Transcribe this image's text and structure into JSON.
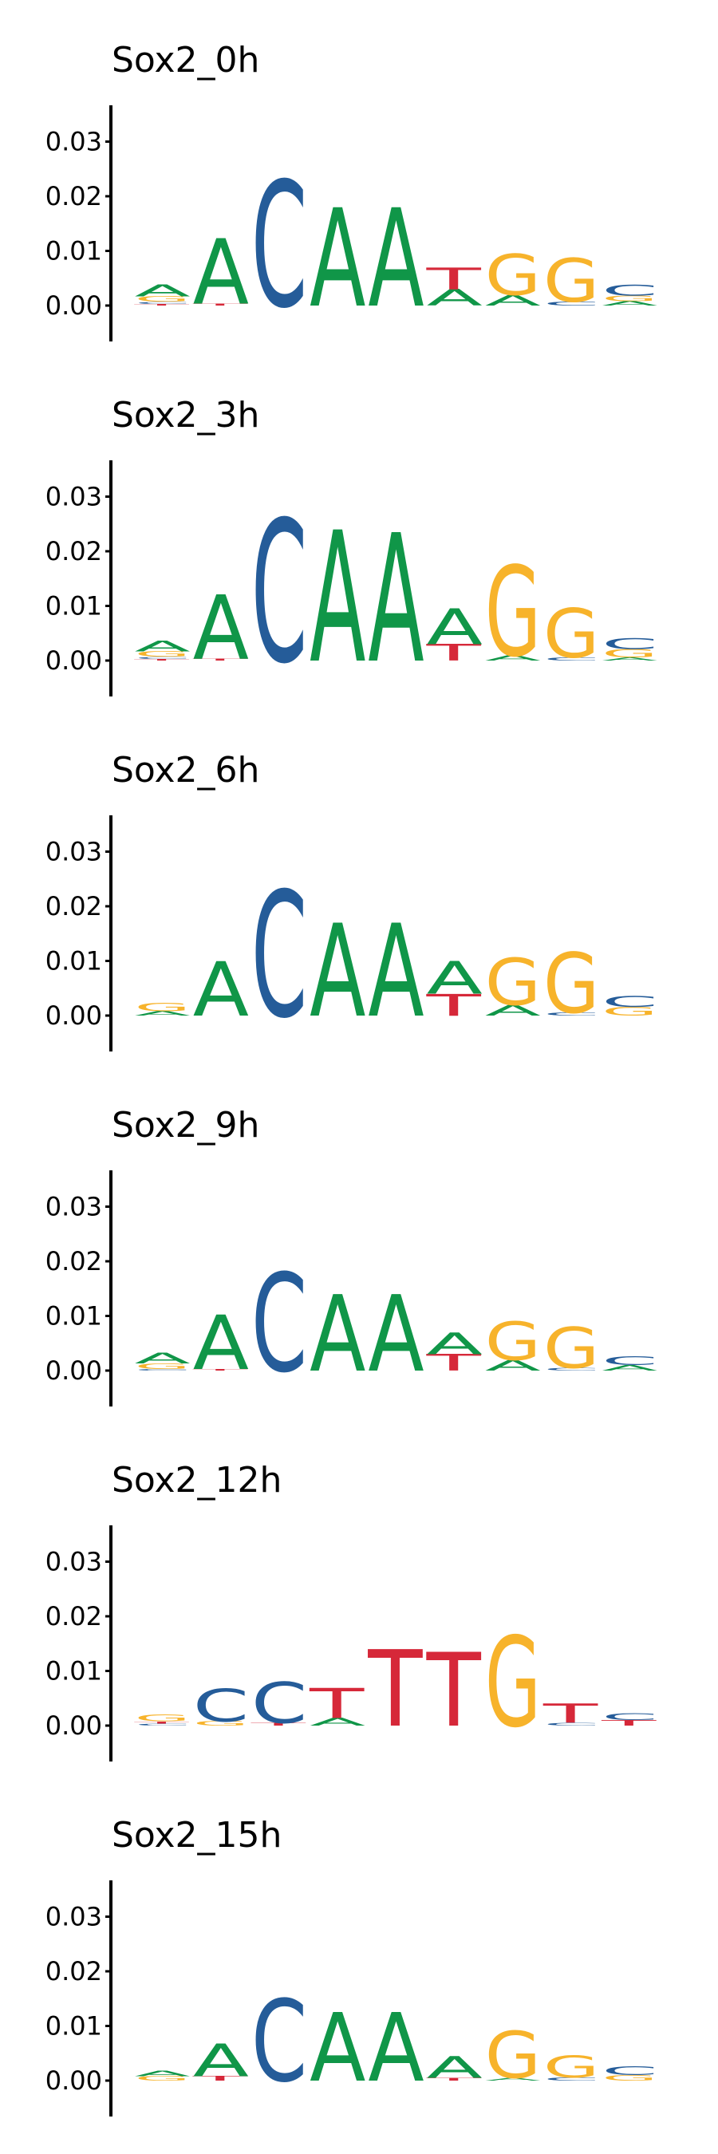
{
  "chart_data": {
    "type": "sequence-logo",
    "ylim": [
      0,
      0.037
    ],
    "yticks": [
      0.0,
      0.01,
      0.02,
      0.03
    ],
    "ytick_labels": [
      "0.00",
      "0.01",
      "0.02",
      "0.03"
    ],
    "letter_colors": {
      "A": "#109648",
      "C": "#255C99",
      "G": "#F7B32B",
      "T": "#D62839"
    },
    "panels": [
      {
        "title": "Sox2_0h",
        "positions": [
          {
            "A": 0.0022,
            "G": 0.001,
            "C": 0.0004,
            "T": 0.0003
          },
          {
            "A": 0.012,
            "T": 0.0004
          },
          {
            "C": 0.023
          },
          {
            "A": 0.018
          },
          {
            "A": 0.018
          },
          {
            "A": 0.003,
            "T": 0.004
          },
          {
            "G": 0.0075,
            "A": 0.002
          },
          {
            "G": 0.008,
            "C": 0.0007
          },
          {
            "C": 0.002,
            "G": 0.001,
            "A": 0.0008
          }
        ]
      },
      {
        "title": "Sox2_3h",
        "positions": [
          {
            "A": 0.002,
            "G": 0.001,
            "C": 0.0004,
            "T": 0.0003
          },
          {
            "A": 0.0118,
            "T": 0.0004
          },
          {
            "C": 0.026
          },
          {
            "A": 0.024
          },
          {
            "A": 0.0235
          },
          {
            "A": 0.0065,
            "T": 0.003
          },
          {
            "G": 0.0165,
            "A": 0.001
          },
          {
            "G": 0.009,
            "C": 0.0006
          },
          {
            "C": 0.002,
            "G": 0.0015,
            "A": 0.0006
          }
        ]
      },
      {
        "title": "Sox2_6h",
        "positions": [
          {
            "G": 0.0015,
            "A": 0.0008
          },
          {
            "A": 0.01
          },
          {
            "C": 0.023
          },
          {
            "A": 0.017
          },
          {
            "A": 0.017
          },
          {
            "A": 0.006,
            "T": 0.004
          },
          {
            "G": 0.0085,
            "A": 0.002
          },
          {
            "G": 0.011,
            "C": 0.0006
          },
          {
            "C": 0.002,
            "G": 0.0016
          }
        ]
      },
      {
        "title": "Sox2_9h",
        "positions": [
          {
            "A": 0.002,
            "G": 0.001,
            "C": 0.0003
          },
          {
            "A": 0.01,
            "T": 0.0003
          },
          {
            "C": 0.018
          },
          {
            "A": 0.014
          },
          {
            "A": 0.014
          },
          {
            "A": 0.004,
            "T": 0.003
          },
          {
            "G": 0.007,
            "A": 0.002
          },
          {
            "G": 0.0075,
            "C": 0.0005
          },
          {
            "C": 0.0016,
            "A": 0.001
          }
        ]
      },
      {
        "title": "Sox2_12h",
        "positions": [
          {
            "G": 0.0012,
            "C": 0.0004,
            "T": 0.0004
          },
          {
            "C": 0.006,
            "G": 0.0008
          },
          {
            "C": 0.0075,
            "T": 0.0005
          },
          {
            "T": 0.0055,
            "A": 0.0014
          },
          {
            "T": 0.014
          },
          {
            "T": 0.0135
          },
          {
            "G": 0.0165
          },
          {
            "T": 0.0035,
            "C": 0.0005
          },
          {
            "T": 0.001,
            "C": 0.0012
          }
        ]
      },
      {
        "title": "Sox2_15h",
        "positions": [
          {
            "A": 0.001,
            "G": 0.0008
          },
          {
            "A": 0.006,
            "T": 0.0008
          },
          {
            "C": 0.015
          },
          {
            "A": 0.0125
          },
          {
            "A": 0.0125
          },
          {
            "A": 0.004,
            "T": 0.0005
          },
          {
            "G": 0.0085,
            "A": 0.0005
          },
          {
            "G": 0.004,
            "C": 0.0006
          },
          {
            "C": 0.0016,
            "G": 0.001
          }
        ]
      }
    ]
  }
}
